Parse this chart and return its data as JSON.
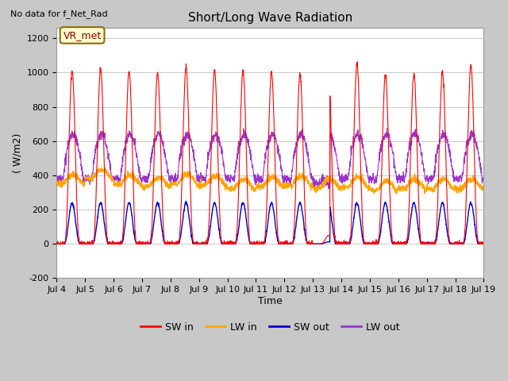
{
  "title": "Short/Long Wave Radiation",
  "ylabel": "( W/m2)",
  "xlabel": "Time",
  "top_left_text": "No data for f_Net_Rad",
  "legend_label": "VR_met",
  "x_tick_labels": [
    "Jul 4",
    "Jul 5",
    "Jul 6",
    "Jul 7",
    "Jul 8",
    "Jul 9",
    "Jul 10",
    "Jul 11",
    "Jul 12",
    "Jul 13",
    "Jul 14",
    "Jul 15",
    "Jul 16",
    "Jul 17",
    "Jul 18",
    "Jul 19"
  ],
  "ylim": [
    -200,
    1260
  ],
  "yticks": [
    -200,
    0,
    200,
    400,
    600,
    800,
    1000,
    1200
  ],
  "colors": {
    "SW_in": "#ff0000",
    "LW_in": "#ffa500",
    "SW_out": "#0000cc",
    "LW_out": "#9933cc"
  },
  "line_labels": [
    "SW in",
    "LW in",
    "SW out",
    "LW out"
  ],
  "fig_bg": "#c8c8c8",
  "plot_bg": "#ffffff",
  "grid_color": "#cccccc"
}
